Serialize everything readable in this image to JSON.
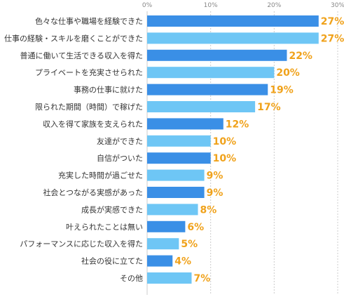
{
  "chart_data": {
    "type": "bar",
    "orientation": "horizontal",
    "title": "",
    "xlabel": "",
    "ylabel": "",
    "xlim": [
      0,
      30
    ],
    "ticks": [
      "0%",
      "10%",
      "20%",
      "30%"
    ],
    "tick_values": [
      0,
      10,
      20,
      30
    ],
    "grid": true,
    "value_suffix": "%",
    "categories": [
      "色々な仕事や職場を経験できた",
      "仕事の経験・スキルを磨くことができた",
      "普通に働いて生活できる収入を得た",
      "プライベートを充実させられた",
      "事務の仕事に就けた",
      "限られた期間（時間）で稼げた",
      "収入を得て家族を支えられた",
      "友達ができた",
      "自信がついた",
      "充実した時間が過ごせた",
      "社会とつながる実感があった",
      "成長が実感できた",
      "叶えられたことは無い",
      "パフォーマンスに応じた収入を得た",
      "社会の役に立てた",
      "その他"
    ],
    "values": [
      27,
      27,
      22,
      20,
      19,
      17,
      12,
      10,
      10,
      9,
      9,
      8,
      6,
      5,
      4,
      7
    ],
    "value_labels": [
      "27%",
      "27%",
      "22%",
      "20%",
      "19%",
      "17%",
      "12%",
      "10%",
      "10%",
      "9%",
      "9%",
      "8%",
      "6%",
      "5%",
      "4%",
      "7%"
    ],
    "colors": {
      "bar_dark": "#3a8fe6",
      "bar_light": "#6ec6f5",
      "value_label": "#f0a21b",
      "grid": "#cccccc",
      "tick": "#888888"
    }
  }
}
